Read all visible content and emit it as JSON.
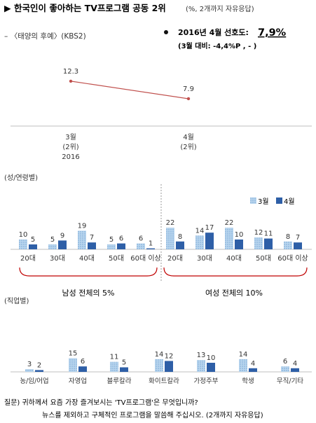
{
  "title": "▶ 한국인이 좋아하는 TV프로그램 공동 2위",
  "title_note": "(%, 2개까지 자유응답)",
  "program_label": "– 〈태양의 후예〉(KBS2)",
  "stat_line": "2016년 4월 선호도:",
  "stat_value": "7,9%",
  "stat_sub": "(3월 대비: -4,4%P , - )",
  "section_gender_age": "(성/연령별)",
  "section_job": "(직업별)",
  "group_male": "남성 전체의 5%",
  "group_female": "여성 전체의 10%",
  "question_line1": "질문) 귀하께서 요즘 가장 즐겨보시는 'TV프로그램'은 무엇입니까?",
  "question_line2": "뉴스를 제외하고 구체적인 프로그램을 말씀해 주십시오. (2개까지 자유응답)",
  "colors": {
    "march": "#9cc3e6",
    "april": "#2e5fa7",
    "line": "#c0504d"
  },
  "chart_data": [
    {
      "type": "line",
      "x": [
        "3월\n(2위)\n2016",
        "4월\n(2위)"
      ],
      "series": [
        {
          "name": "",
          "values": [
            12.3,
            7.9
          ]
        }
      ],
      "value_labels": [
        "12.3",
        "7.9"
      ]
    },
    {
      "type": "bar",
      "categories": [
        "20대",
        "30대",
        "40대",
        "50대",
        "60대 이상",
        "20대",
        "30대",
        "40대",
        "50대",
        "60대 이상"
      ],
      "series": [
        {
          "name": "3월",
          "values": [
            10,
            5,
            19,
            5,
            6,
            22,
            14,
            22,
            12,
            8
          ]
        },
        {
          "name": "4월",
          "values": [
            5,
            9,
            7,
            6,
            1,
            8,
            17,
            10,
            11,
            7
          ]
        }
      ],
      "legend": "top-right"
    },
    {
      "type": "bar",
      "categories": [
        "농/임/어업",
        "자영업",
        "블루칼라",
        "화이트칼라",
        "가정주부",
        "학생",
        "무직/기타"
      ],
      "series": [
        {
          "name": "3월",
          "values": [
            3,
            15,
            11,
            14,
            13,
            14,
            6
          ]
        },
        {
          "name": "4월",
          "values": [
            2,
            6,
            5,
            12,
            10,
            4,
            4
          ]
        }
      ]
    }
  ]
}
